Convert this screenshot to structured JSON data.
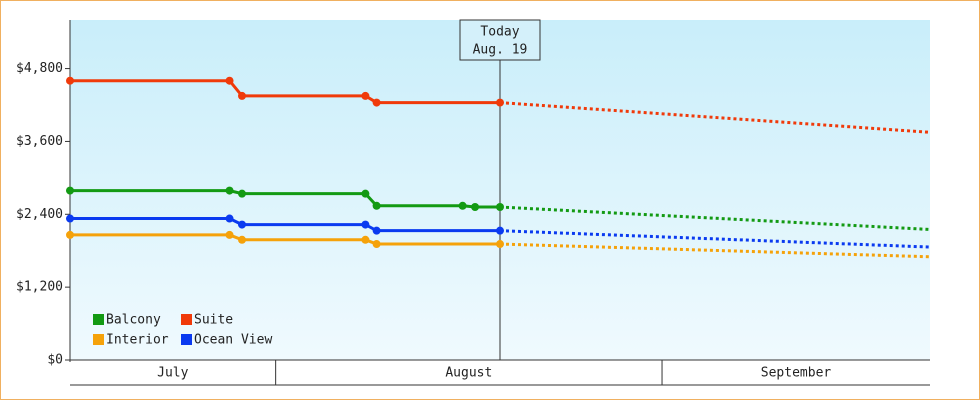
{
  "chart_data": {
    "type": "line",
    "ylim": [
      0,
      5600
    ],
    "yticks": [
      {
        "value": 0,
        "label": "$0"
      },
      {
        "value": 1200,
        "label": "$1,200"
      },
      {
        "value": 2400,
        "label": "$2,400"
      },
      {
        "value": 3600,
        "label": "$3,600"
      },
      {
        "value": 4800,
        "label": "$4,800"
      }
    ],
    "xlim": [
      14.5,
      83.5
    ],
    "months": [
      "July",
      "August",
      "September"
    ],
    "month_starts": [
      31,
      62
    ],
    "today": {
      "x": 49,
      "lines": [
        "Today",
        "Aug. 19"
      ]
    },
    "forecast_x": 83.5,
    "legend": "lower left",
    "series": [
      {
        "name": "Balcony",
        "color": "#139a13",
        "x": [
          14.5,
          27.3,
          28.3,
          38.2,
          39.1,
          46,
          47,
          49
        ],
        "values": [
          2790,
          2790,
          2740,
          2740,
          2540,
          2540,
          2520,
          2520
        ],
        "forecast": 2150
      },
      {
        "name": "Suite",
        "color": "#f03a0a",
        "x": [
          14.5,
          27.3,
          28.3,
          38.2,
          39.1,
          49
        ],
        "values": [
          4600,
          4600,
          4350,
          4350,
          4240,
          4240
        ],
        "forecast": 3750
      },
      {
        "name": "Interior",
        "color": "#f5a20a",
        "x": [
          14.5,
          27.3,
          28.3,
          38.2,
          39.1,
          49
        ],
        "values": [
          2060,
          2060,
          1980,
          1980,
          1910,
          1910
        ],
        "forecast": 1700
      },
      {
        "name": "Ocean View",
        "color": "#0a3af0",
        "x": [
          14.5,
          27.3,
          28.3,
          38.2,
          39.1,
          49
        ],
        "values": [
          2330,
          2330,
          2230,
          2230,
          2130,
          2130
        ],
        "forecast": 1860
      }
    ]
  }
}
